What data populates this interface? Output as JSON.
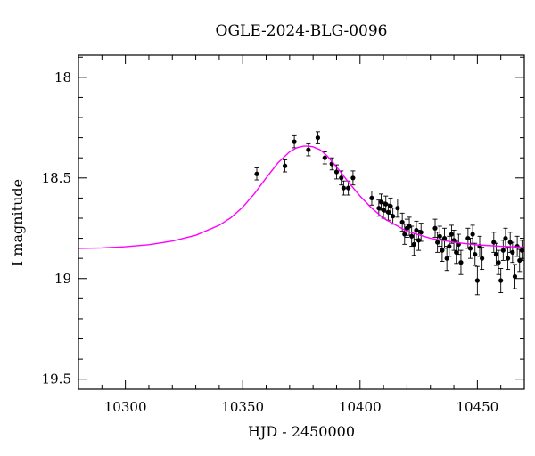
{
  "chart_data": {
    "type": "scatter",
    "title": "OGLE-2024-BLG-0096",
    "xlabel": "HJD - 2450000",
    "ylabel": "I magnitude",
    "xlim": [
      10280,
      10470
    ],
    "ylim": [
      19.55,
      17.89
    ],
    "y_inverted": true,
    "xticks": [
      10300,
      10350,
      10400,
      10450
    ],
    "yticks": [
      18,
      18.5,
      19,
      19.5
    ],
    "grid": false,
    "colors": {
      "data": "#000000",
      "model": "#ff00ff"
    },
    "model": {
      "name": "",
      "x": [
        10280,
        10290,
        10300,
        10310,
        10320,
        10330,
        10340,
        10345,
        10350,
        10355,
        10360,
        10365,
        10370,
        10373,
        10376,
        10378,
        10380,
        10383,
        10386,
        10390,
        10395,
        10400,
        10405,
        10410,
        10420,
        10430,
        10440,
        10450,
        10460,
        10470
      ],
      "y": [
        18.85,
        18.848,
        18.842,
        18.832,
        18.814,
        18.785,
        18.735,
        18.697,
        18.645,
        18.578,
        18.5,
        18.425,
        18.37,
        18.35,
        18.342,
        18.342,
        18.345,
        18.36,
        18.39,
        18.445,
        18.52,
        18.59,
        18.65,
        18.7,
        18.765,
        18.8,
        18.82,
        18.833,
        18.84,
        18.845
      ]
    },
    "series": [
      {
        "name": "",
        "x": [
          10356,
          10368,
          10372,
          10378,
          10382,
          10385,
          10388,
          10390,
          10392,
          10393,
          10395,
          10397,
          10405,
          10408,
          10409,
          10410,
          10411,
          10412,
          10413,
          10414,
          10416,
          10418,
          10419,
          10420,
          10421,
          10422,
          10423,
          10424,
          10425,
          10426,
          10432,
          10433,
          10434,
          10435,
          10436,
          10437,
          10438,
          10439,
          10440,
          10441,
          10442,
          10443,
          10446,
          10447,
          10448,
          10449,
          10450,
          10451,
          10452,
          10457,
          10458,
          10459,
          10460,
          10461,
          10462,
          10463,
          10464,
          10465,
          10466,
          10467,
          10468,
          10469
        ],
        "y": [
          18.48,
          18.44,
          18.32,
          18.36,
          18.3,
          18.4,
          18.43,
          18.47,
          18.5,
          18.55,
          18.55,
          18.5,
          18.6,
          18.65,
          18.62,
          18.66,
          18.63,
          18.67,
          18.64,
          18.69,
          18.65,
          18.72,
          18.78,
          18.75,
          18.74,
          18.79,
          18.83,
          18.76,
          18.81,
          18.77,
          18.75,
          18.82,
          18.79,
          18.86,
          18.8,
          18.9,
          18.84,
          18.78,
          18.81,
          18.87,
          18.83,
          18.92,
          18.8,
          18.85,
          18.78,
          18.88,
          19.01,
          18.84,
          18.9,
          18.82,
          18.88,
          18.92,
          19.01,
          18.86,
          18.8,
          18.9,
          18.82,
          18.87,
          18.99,
          18.84,
          18.91,
          18.86
        ],
        "yerr": [
          0.03,
          0.03,
          0.03,
          0.03,
          0.03,
          0.03,
          0.03,
          0.035,
          0.035,
          0.035,
          0.035,
          0.035,
          0.035,
          0.04,
          0.04,
          0.04,
          0.04,
          0.04,
          0.04,
          0.04,
          0.045,
          0.045,
          0.05,
          0.045,
          0.045,
          0.05,
          0.055,
          0.045,
          0.05,
          0.045,
          0.045,
          0.05,
          0.05,
          0.055,
          0.05,
          0.06,
          0.05,
          0.045,
          0.05,
          0.055,
          0.05,
          0.06,
          0.05,
          0.05,
          0.045,
          0.055,
          0.07,
          0.05,
          0.055,
          0.05,
          0.055,
          0.06,
          0.06,
          0.05,
          0.05,
          0.055,
          0.05,
          0.05,
          0.06,
          0.05,
          0.055,
          0.05
        ]
      }
    ]
  }
}
